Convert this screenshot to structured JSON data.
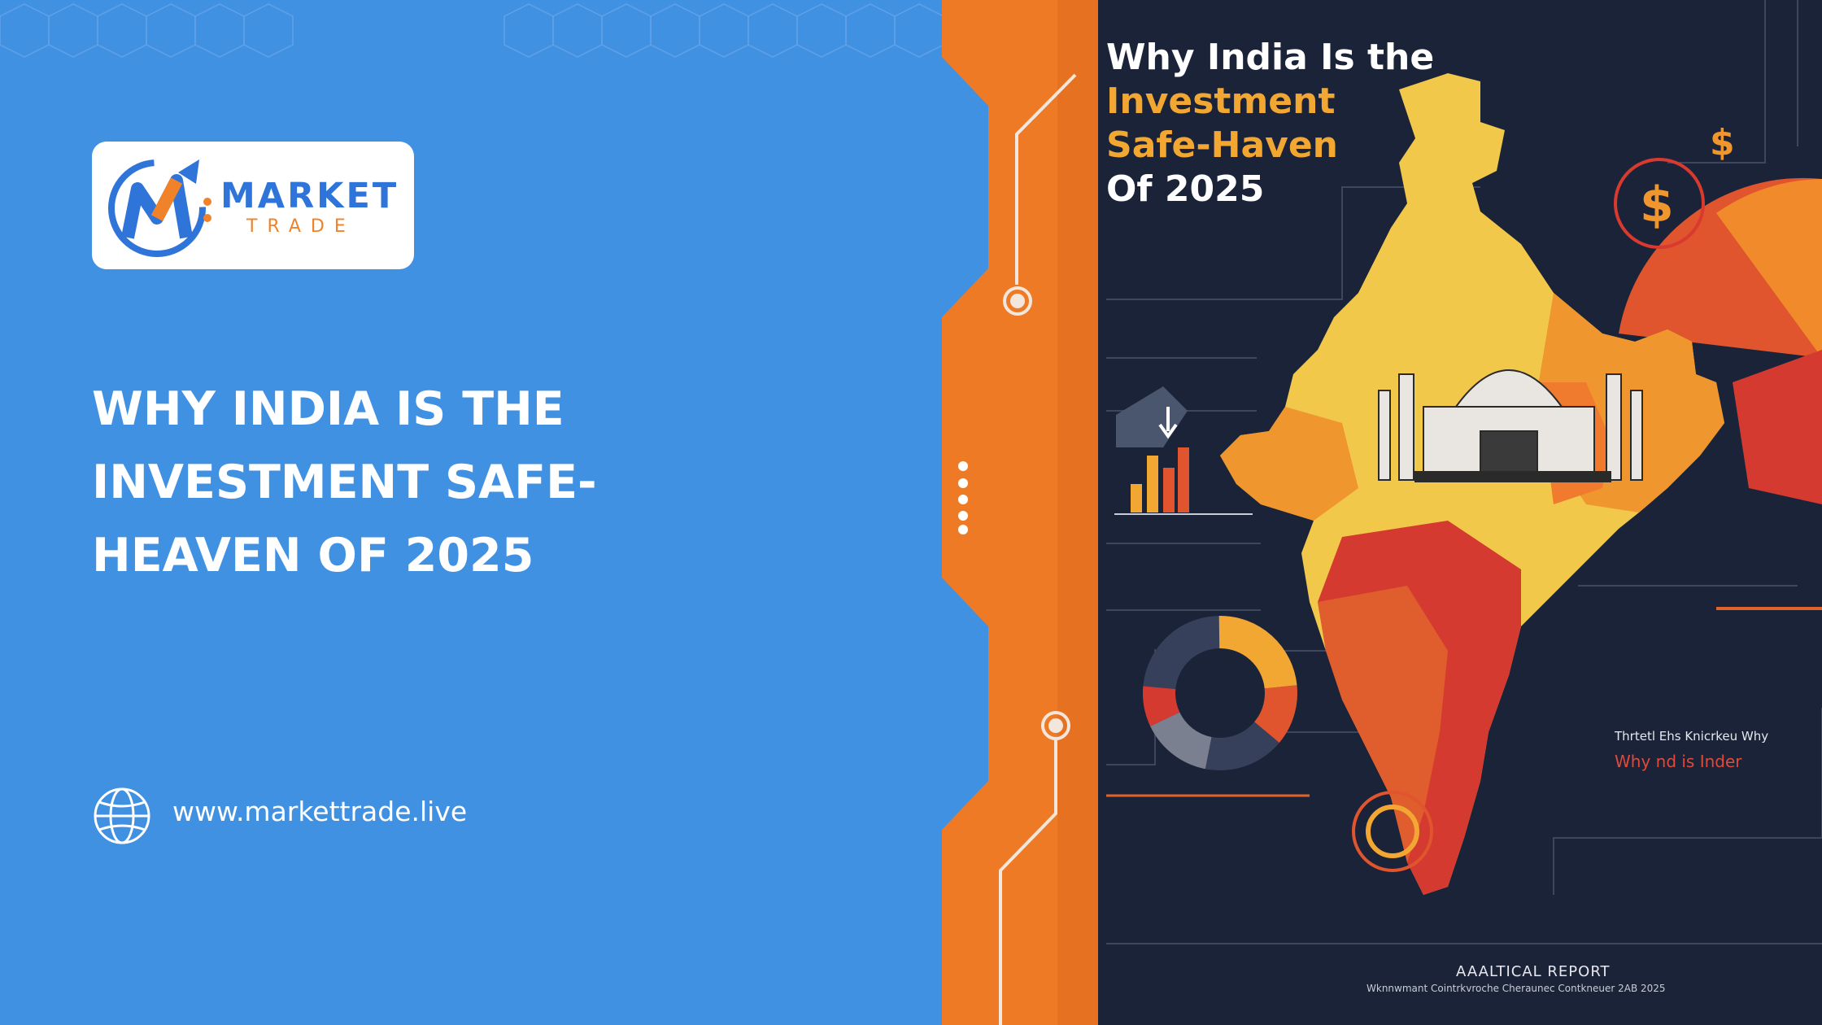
{
  "brand": {
    "name_line1": "MARKET",
    "name_line2": "TRADE",
    "colors": {
      "blue": "#2f74d8",
      "orange": "#f0832a",
      "background": "#4191e3"
    }
  },
  "headline": "WHY INDIA IS THE INVESTMENT SAFE-HEAVEN OF 2025",
  "website": {
    "icon": "globe-icon",
    "url": "www.markettrade.live"
  },
  "infographic": {
    "title_line1": "Why India Is the",
    "title_line2": "Investment",
    "title_line3": "Safe-Haven",
    "title_line4": "Of 2025",
    "side_title": "Thrtetl Ehs Knicrkeu Why",
    "side_subtitle": "Why nd is Inder",
    "report_title": "AAALTICAL REPORT",
    "report_subtitle": "Wknnwmant Cointrkvroche Cheraunec Contkneuer 2AB 2025",
    "colors": {
      "panel": "#1b2338",
      "yellow": "#f2c84b",
      "orange": "#f0962e",
      "red": "#d43a30"
    }
  },
  "decor": {
    "dots_icon": "vertical-dots-icon"
  }
}
